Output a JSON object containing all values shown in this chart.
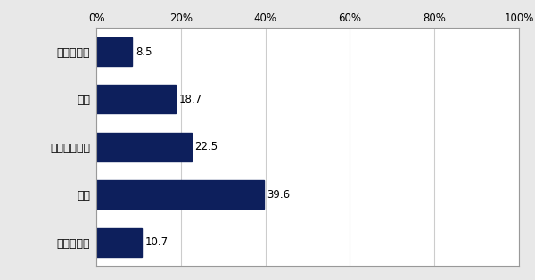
{
  "categories": [
    "大いにある",
    "ある",
    "ほとんどない",
    "ない",
    "わからない"
  ],
  "values": [
    8.5,
    18.7,
    22.5,
    39.6,
    10.7
  ],
  "bar_color": "#0d1f5c",
  "xlim": [
    0,
    100
  ],
  "xticks": [
    0,
    20,
    40,
    60,
    80,
    100
  ],
  "xtick_labels": [
    "0%",
    "20%",
    "40%",
    "60%",
    "80%",
    "100%"
  ],
  "bar_height": 0.6,
  "background_color": "#e8e8e8",
  "plot_bg_color": "#ffffff",
  "border_color": "#999999",
  "label_fontsize": 9,
  "value_fontsize": 8.5,
  "tick_fontsize": 8.5,
  "grid_color": "#cccccc"
}
